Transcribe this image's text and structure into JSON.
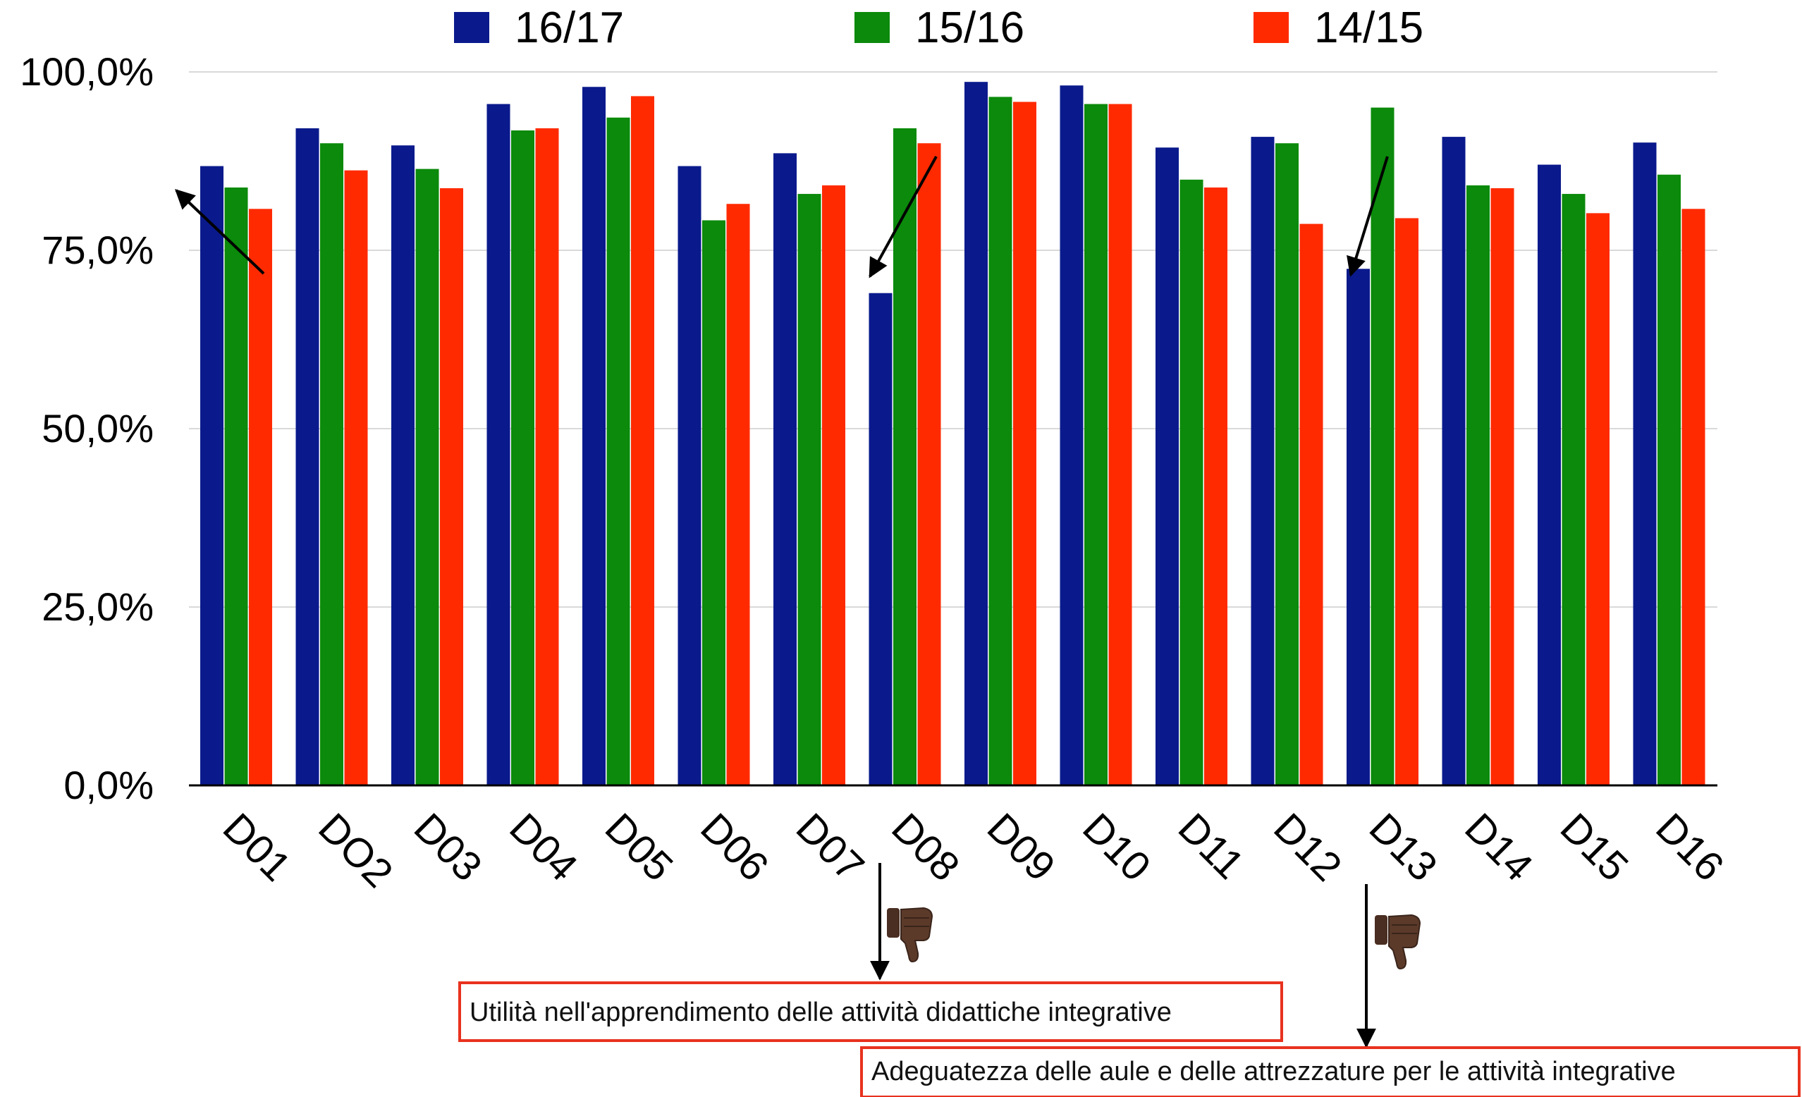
{
  "chart_data": {
    "type": "bar",
    "categories": [
      "D01",
      "DO2",
      "D03",
      "D04",
      "D05",
      "D06",
      "D07",
      "D08",
      "D09",
      "D10",
      "D11",
      "D12",
      "D13",
      "D14",
      "D15",
      "D16"
    ],
    "series": [
      {
        "name": "16/17",
        "color": "#0a1a8c",
        "values": [
          86.8,
          92.1,
          89.7,
          95.5,
          97.9,
          86.8,
          88.6,
          69.0,
          98.6,
          98.1,
          89.4,
          90.9,
          72.4,
          90.9,
          87.0,
          90.1
        ]
      },
      {
        "name": "15/16",
        "color": "#0b8a0b",
        "values": [
          83.8,
          90.0,
          86.4,
          91.8,
          93.6,
          79.2,
          82.9,
          92.1,
          96.5,
          95.5,
          84.9,
          90.0,
          95.0,
          84.1,
          82.9,
          85.6
        ]
      },
      {
        "name": "14/15",
        "color": "#ff2a00",
        "values": [
          80.8,
          86.2,
          83.7,
          92.1,
          96.6,
          81.5,
          84.1,
          90.0,
          95.8,
          95.5,
          83.8,
          78.7,
          79.5,
          83.7,
          80.2,
          80.8
        ]
      }
    ],
    "ylim": [
      0,
      100
    ],
    "yticks": [
      "0,0%",
      "25,0%",
      "50,0%",
      "75,0%",
      "100,0%"
    ],
    "grid": true,
    "legend_position": "top",
    "annotations": [
      {
        "text": "Utilità nell'apprendimento delle attività didattiche integrative",
        "category": "D08",
        "icon": "thumbs-down-icon",
        "border_color": "#e8321e"
      },
      {
        "text": "Adeguatezza delle aule e delle attrezzature per le attività integrative",
        "category": "D13",
        "icon": "thumbs-down-icon",
        "border_color": "#e8321e"
      }
    ]
  }
}
